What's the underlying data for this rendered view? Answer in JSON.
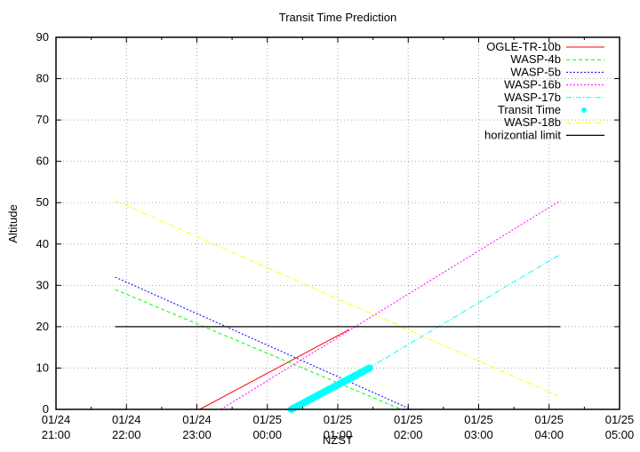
{
  "chart_data": {
    "type": "line",
    "title": "Transit Time Prediction",
    "xlabel": "NZST",
    "ylabel": "Altitude",
    "ylim": [
      0,
      90
    ],
    "yticks": [
      0,
      10,
      20,
      30,
      40,
      50,
      60,
      70,
      80,
      90
    ],
    "xticks": [
      {
        "date": "01/24",
        "time": "21:00"
      },
      {
        "date": "01/24",
        "time": "22:00"
      },
      {
        "date": "01/24",
        "time": "23:00"
      },
      {
        "date": "01/25",
        "time": "00:00"
      },
      {
        "date": "01/25",
        "time": "01:00"
      },
      {
        "date": "01/25",
        "time": "02:00"
      },
      {
        "date": "01/25",
        "time": "03:00"
      },
      {
        "date": "01/25",
        "time": "04:00"
      },
      {
        "date": "01/25",
        "time": "05:00"
      }
    ],
    "xrange_hours_from_2100": [
      0,
      8
    ],
    "grid": true,
    "legend_position": "top-right",
    "series": [
      {
        "name": "OGLE-TR-10b",
        "color": "#ff0000",
        "style": "solid",
        "x_hours": [
          2.04,
          4.16
        ],
        "values": [
          0,
          19.3
        ]
      },
      {
        "name": "WASP-4b",
        "color": "#00ff00",
        "style": "dashed",
        "x_hours": [
          0.84,
          4.9
        ],
        "values": [
          29,
          0
        ]
      },
      {
        "name": "WASP-5b",
        "color": "#0000ff",
        "style": "dotted",
        "x_hours": [
          0.84,
          5.04
        ],
        "values": [
          32,
          0
        ]
      },
      {
        "name": "WASP-16b",
        "color": "#ff00ff",
        "style": "dotted",
        "x_hours": [
          2.34,
          7.16
        ],
        "values": [
          0,
          50.5
        ]
      },
      {
        "name": "WASP-17b",
        "color": "#00ffff",
        "style": "dashdot",
        "x_hours": [
          4.44,
          7.16
        ],
        "values": [
          10,
          37.5
        ]
      },
      {
        "name": "Transit Time",
        "color": "#00ffff",
        "style": "points",
        "x_hours": [
          3.34,
          4.45
        ],
        "values": [
          0,
          10
        ]
      },
      {
        "name": "WASP-18b",
        "color": "#ffff00",
        "style": "dashdot",
        "x_hours": [
          0.84,
          7.16
        ],
        "values": [
          50.5,
          3
        ]
      },
      {
        "name": "horizontial limit",
        "color": "#000000",
        "style": "solid",
        "x_hours": [
          0.84,
          7.16
        ],
        "values": [
          20,
          20
        ]
      }
    ]
  }
}
